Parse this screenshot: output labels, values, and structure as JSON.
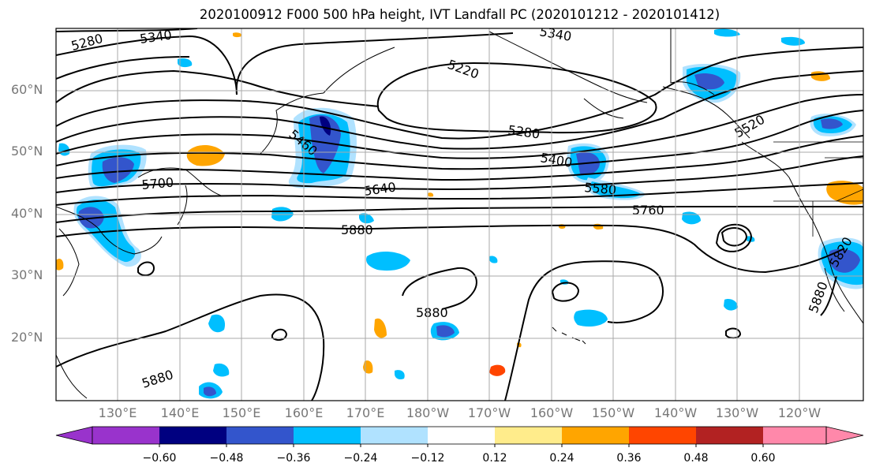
{
  "title": "2020100912 F000 500 hPa height, IVT Landfall PC (2020101212 - 2020101412)",
  "latitude_labels": [
    "60°N",
    "50°N",
    "40°N",
    "30°N",
    "20°N"
  ],
  "longitude_labels": [
    "130°E",
    "140°E",
    "150°E",
    "160°E",
    "170°E",
    "180°W",
    "170°W",
    "160°W",
    "150°W",
    "140°W",
    "130°W",
    "120°W"
  ],
  "contour_labels": [
    "5280",
    "5340",
    "5340",
    "5220",
    "5280",
    "5400",
    "5460",
    "5700",
    "5640",
    "5580",
    "5760",
    "5880",
    "5880",
    "5880",
    "5520",
    "5820",
    "5880"
  ],
  "colorbar": {
    "tick_labels": [
      "−0.60",
      "−0.48",
      "−0.36",
      "−0.24",
      "−0.12",
      "0.12",
      "0.24",
      "0.36",
      "0.48",
      "0.60"
    ],
    "colors": [
      "#9933cc",
      "#000080",
      "#3355cc",
      "#00bfff",
      "#b0e2ff",
      "#ffffff",
      "#ffec8b",
      "#ffa500",
      "#ff4500",
      "#b22222",
      "#ff88aa"
    ]
  },
  "fill_colors": {
    "light_blue": "#b0e2ff",
    "cyan": "#00bfff",
    "mid_blue": "#3355cc",
    "navy": "#000080",
    "yellow": "#ffec8b",
    "orange": "#ffa500",
    "red_orange": "#ff4500"
  }
}
